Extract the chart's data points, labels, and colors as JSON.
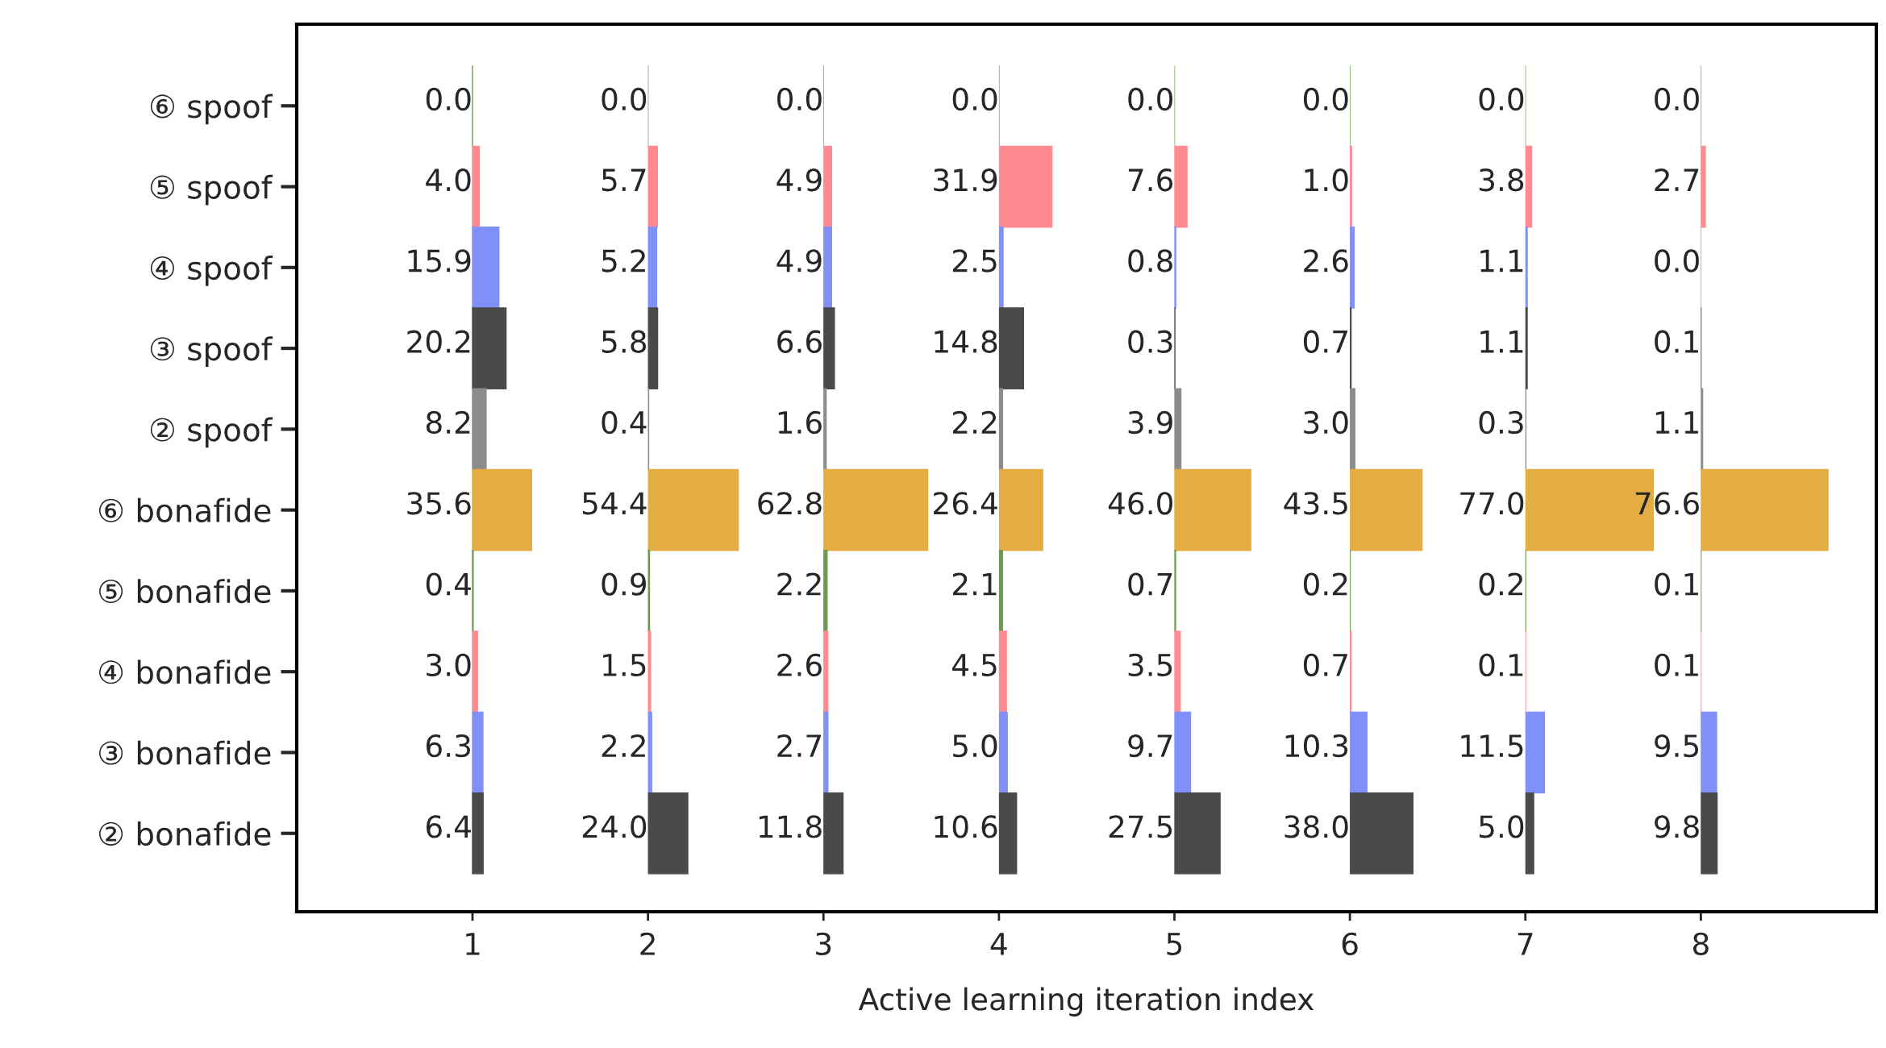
{
  "chart_data": [
    {
      "type": "bar",
      "orientation": "horizontal",
      "tick_labels": "y",
      "annotations": [
        "1"
      ],
      "categories": [
        "⑥ spoof",
        "⑤ spoof",
        "④ spoof",
        "③ spoof",
        "② spoof",
        "⑥ bonafide",
        "⑤ bonafide",
        "④ bonafide",
        "③ bonafide",
        "② bonafide"
      ],
      "colors": [
        "#6b9a50",
        "#ff8a90",
        "#8090f8",
        "#4a4a4a",
        "#8c8c8c",
        "#e3ad44",
        "#6b9a50",
        "#ff8a90",
        "#8090f8",
        "#4a4a4a"
      ],
      "values": [
        0.0,
        4.0,
        15.9,
        20.2,
        8.2,
        35.6,
        0.4,
        3.0,
        6.3,
        6.4
      ],
      "value_labels": [
        "0.0",
        "4.0",
        "15.9",
        "20.2",
        "8.2",
        "35.6",
        "0.4",
        "3.0",
        "6.3",
        "6.4"
      ]
    },
    {
      "type": "bar",
      "orientation": "horizontal",
      "tick_labels": false,
      "annotations": [
        "2"
      ],
      "categories": [
        null,
        null,
        null,
        null,
        null,
        null,
        null,
        null,
        null,
        null
      ],
      "colors": [
        "#6b9a50",
        "#ff8a90",
        "#8090f8",
        "#4a4a4a",
        "#8c8c8c",
        "#e3ad44",
        "#6b9a50",
        "#ff8a90",
        "#8090f8",
        "#4a4a4a"
      ],
      "values": [
        0.0,
        5.7,
        5.2,
        5.8,
        0.4,
        54.4,
        0.9,
        1.5,
        2.2,
        24.0
      ],
      "value_labels": [
        "0.0",
        "5.7",
        "5.2",
        "5.8",
        "0.4",
        "54.4",
        "0.9",
        "1.5",
        "2.2",
        "24.0"
      ]
    },
    {
      "type": "bar",
      "orientation": "horizontal",
      "tick_labels": false,
      "annotations": [
        "3"
      ],
      "categories": [
        null,
        null,
        null,
        null,
        null,
        null,
        null,
        null,
        null,
        null
      ],
      "colors": [
        "#6b9a50",
        "#ff8a90",
        "#8090f8",
        "#4a4a4a",
        "#8c8c8c",
        "#e3ad44",
        "#6b9a50",
        "#ff8a90",
        "#8090f8",
        "#4a4a4a"
      ],
      "values": [
        0.0,
        4.9,
        4.9,
        6.6,
        1.6,
        62.8,
        2.2,
        2.6,
        2.7,
        11.8
      ],
      "value_labels": [
        "0.0",
        "4.9",
        "4.9",
        "6.6",
        "1.6",
        "62.8",
        "2.2",
        "2.6",
        "2.7",
        "11.8"
      ]
    },
    {
      "type": "bar",
      "orientation": "horizontal",
      "tick_labels": false,
      "xlabel": "Active learning iteration index",
      "annotations": [
        "4"
      ],
      "categories": [
        null,
        null,
        null,
        null,
        null,
        null,
        null,
        null,
        null,
        null
      ],
      "colors": [
        "#6b9a50",
        "#ff8a90",
        "#8090f8",
        "#4a4a4a",
        "#8c8c8c",
        "#e3ad44",
        "#6b9a50",
        "#ff8a90",
        "#8090f8",
        "#4a4a4a"
      ],
      "values": [
        0.0,
        31.9,
        2.5,
        14.8,
        2.2,
        26.4,
        2.1,
        4.5,
        5.0,
        10.6
      ],
      "value_labels": [
        "0.0",
        "31.9",
        "2.5",
        "14.8",
        "2.2",
        "26.4",
        "2.1",
        "4.5",
        "5.0",
        "10.6"
      ]
    },
    {
      "type": "bar",
      "orientation": "horizontal",
      "tick_labels": false,
      "annotations": [
        "5"
      ],
      "categories": [
        null,
        null,
        null,
        null,
        null,
        null,
        null,
        null,
        null,
        null
      ],
      "colors": [
        "#6b9a50",
        "#ff8a90",
        "#8090f8",
        "#4a4a4a",
        "#8c8c8c",
        "#e3ad44",
        "#6b9a50",
        "#ff8a90",
        "#8090f8",
        "#4a4a4a"
      ],
      "values": [
        0.0,
        7.6,
        0.8,
        0.3,
        3.9,
        46.0,
        0.7,
        3.5,
        9.7,
        27.5
      ],
      "value_labels": [
        "0.0",
        "7.6",
        "0.8",
        "0.3",
        "3.9",
        "46.0",
        "0.7",
        "3.5",
        "9.7",
        "27.5"
      ]
    },
    {
      "type": "bar",
      "orientation": "horizontal",
      "tick_labels": false,
      "annotations": [
        "6"
      ],
      "categories": [
        null,
        null,
        null,
        null,
        null,
        null,
        null,
        null,
        null,
        null
      ],
      "colors": [
        "#6b9a50",
        "#ff8a90",
        "#8090f8",
        "#4a4a4a",
        "#8c8c8c",
        "#e3ad44",
        "#6b9a50",
        "#ff8a90",
        "#8090f8",
        "#4a4a4a"
      ],
      "values": [
        0.0,
        1.0,
        2.6,
        0.7,
        3.0,
        43.5,
        0.2,
        0.7,
        10.3,
        38.0
      ],
      "value_labels": [
        "0.0",
        "1.0",
        "2.6",
        "0.7",
        "3.0",
        "43.5",
        "0.2",
        "0.7",
        "10.3",
        "38.0"
      ]
    },
    {
      "type": "bar",
      "orientation": "horizontal",
      "tick_labels": false,
      "annotations": [
        "7"
      ],
      "categories": [
        null,
        null,
        null,
        null,
        null,
        null,
        null,
        null,
        null,
        null
      ],
      "colors": [
        "#6b9a50",
        "#ff8a90",
        "#8090f8",
        "#4a4a4a",
        "#8c8c8c",
        "#e3ad44",
        "#6b9a50",
        "#ff8a90",
        "#8090f8",
        "#4a4a4a"
      ],
      "values": [
        0.0,
        3.8,
        1.1,
        1.1,
        0.3,
        77.0,
        0.2,
        0.1,
        11.5,
        5.0
      ],
      "value_labels": [
        "0.0",
        "3.8",
        "1.1",
        "1.1",
        "0.3",
        "77.0",
        "0.2",
        "0.1",
        "11.5",
        "5.0"
      ]
    },
    {
      "type": "bar",
      "orientation": "horizontal",
      "tick_labels": false,
      "annotations": [
        "8"
      ],
      "categories": [
        null,
        null,
        null,
        null,
        null,
        null,
        null,
        null,
        null,
        null
      ],
      "colors": [
        "#6b9a50",
        "#ff8a90",
        "#8090f8",
        "#4a4a4a",
        "#8c8c8c",
        "#e3ad44",
        "#6b9a50",
        "#ff8a90",
        "#8090f8",
        "#4a4a4a"
      ],
      "values": [
        0.0,
        2.7,
        0.0,
        0.1,
        1.1,
        76.6,
        0.1,
        0.1,
        9.5,
        9.8
      ],
      "value_labels": [
        "0.0",
        "2.7",
        "0.0",
        "0.1",
        "1.1",
        "76.6",
        "0.1",
        "0.1",
        "9.5",
        "9.8"
      ]
    }
  ]
}
